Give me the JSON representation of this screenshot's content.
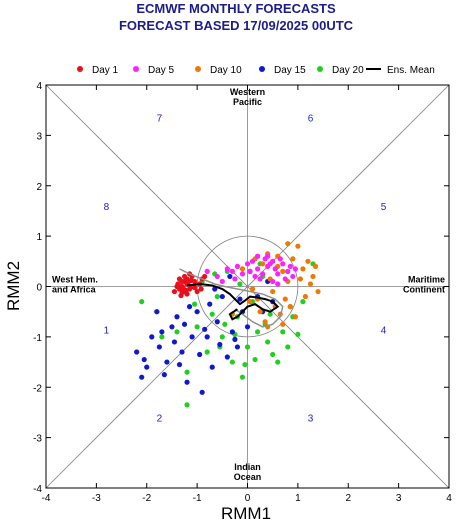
{
  "title_line1": "ECMWF MONTHLY FORECASTS",
  "title_line2": "FORECAST BASED 17/09/2025 00UTC",
  "colors": {
    "title": "#1c1c8c",
    "day1": "#e8101a",
    "day5": "#ff20ff",
    "day10": "#f07800",
    "day15": "#1018d0",
    "day20": "#20d020",
    "ens_mean": "#000000",
    "phase_numbers": "#2020d0"
  },
  "legend": [
    {
      "label": "Day 1",
      "color": "#e8101a",
      "kind": "dot"
    },
    {
      "label": "Day 5",
      "color": "#ff20ff",
      "kind": "dot"
    },
    {
      "label": "Day 10",
      "color": "#f07800",
      "kind": "dot"
    },
    {
      "label": "Day 15",
      "color": "#1018d0",
      "kind": "dot"
    },
    {
      "label": "Day 20",
      "color": "#20d020",
      "kind": "dot"
    },
    {
      "label": "Ens. Mean",
      "color": "#000000",
      "kind": "line"
    }
  ],
  "regions": {
    "top": [
      "Western",
      "Pacific"
    ],
    "bottom": [
      "Indian",
      "Ocean"
    ],
    "left": [
      "West Hem.",
      "and Africa"
    ],
    "right": [
      "Maritime",
      "Continent"
    ]
  },
  "chart_data": {
    "type": "scatter",
    "title": "ECMWF MONTHLY FORECASTS",
    "subtitle": "FORECAST BASED 17/09/2025 00UTC",
    "xlabel": "RMM1",
    "ylabel": "RMM2",
    "xlim": [
      -4,
      4
    ],
    "ylim": [
      -4,
      4
    ],
    "xticks": [
      -4,
      -3,
      -2,
      -1,
      0,
      1,
      2,
      3,
      4
    ],
    "yticks": [
      -4,
      -3,
      -2,
      -1,
      0,
      1,
      2,
      3,
      4
    ],
    "unit_circle_radius": 1,
    "phases": [
      {
        "label": "1",
        "x": -2.8,
        "y": -0.85
      },
      {
        "label": "2",
        "x": -1.75,
        "y": -2.6
      },
      {
        "label": "3",
        "x": 1.25,
        "y": -2.6
      },
      {
        "label": "4",
        "x": 2.7,
        "y": -0.85
      },
      {
        "label": "5",
        "x": 2.7,
        "y": 1.6
      },
      {
        "label": "6",
        "x": 1.25,
        "y": 3.35
      },
      {
        "label": "7",
        "x": -1.75,
        "y": 3.35
      },
      {
        "label": "8",
        "x": -2.8,
        "y": 1.6
      }
    ],
    "series": [
      {
        "name": "Day 1",
        "points": [
          [
            -1.25,
            0.1
          ],
          [
            -1.2,
            0.05
          ],
          [
            -1.3,
            0.0
          ],
          [
            -1.35,
            -0.05
          ],
          [
            -1.2,
            0.15
          ],
          [
            -1.1,
            0.0
          ],
          [
            -1.25,
            -0.1
          ],
          [
            -1.3,
            0.1
          ],
          [
            -1.15,
            -0.05
          ],
          [
            -1.4,
            0.0
          ],
          [
            -1.05,
            0.1
          ],
          [
            -1.2,
            -0.15
          ],
          [
            -1.3,
            -0.12
          ],
          [
            -0.95,
            0.05
          ],
          [
            -1.1,
            0.2
          ],
          [
            -0.9,
            0.15
          ],
          [
            -1.35,
            0.15
          ],
          [
            -1.28,
            -0.02
          ],
          [
            -1.18,
            0.08
          ],
          [
            -1.22,
            -0.08
          ],
          [
            -1.0,
            -0.1
          ],
          [
            -0.85,
            0.2
          ],
          [
            -1.45,
            -0.1
          ],
          [
            -1.12,
            0.12
          ],
          [
            -1.25,
            0.2
          ],
          [
            -0.92,
            -0.05
          ],
          [
            -1.38,
            0.05
          ],
          [
            -1.05,
            -0.02
          ],
          [
            -1.15,
            0.25
          ],
          [
            -1.32,
            -0.18
          ]
        ]
      },
      {
        "name": "Day 5",
        "points": [
          [
            -0.8,
            0.3
          ],
          [
            0.4,
            0.4
          ],
          [
            0.6,
            0.25
          ],
          [
            -0.3,
            0.3
          ],
          [
            0.2,
            0.35
          ],
          [
            0.7,
            0.45
          ],
          [
            -0.6,
            0.2
          ],
          [
            0.1,
            0.5
          ],
          [
            0.5,
            0.1
          ],
          [
            0.3,
            0.25
          ],
          [
            -0.2,
            0.4
          ],
          [
            0.8,
            0.3
          ],
          [
            0.45,
            0.45
          ],
          [
            -0.5,
            0.1
          ],
          [
            0.9,
            0.2
          ],
          [
            0.25,
            0.15
          ],
          [
            0.65,
            0.55
          ],
          [
            -0.1,
            0.25
          ],
          [
            0.55,
            0.35
          ],
          [
            0.35,
            0.55
          ],
          [
            0.0,
            0.45
          ],
          [
            0.75,
            0.15
          ],
          [
            -0.4,
            0.35
          ],
          [
            0.15,
            0.2
          ],
          [
            0.85,
            0.4
          ],
          [
            0.4,
            0.6
          ],
          [
            -0.25,
            0.15
          ],
          [
            0.6,
            0.05
          ],
          [
            0.2,
            0.6
          ],
          [
            0.95,
            0.35
          ],
          [
            0.05,
            0.3
          ],
          [
            0.5,
            0.5
          ]
        ]
      },
      {
        "name": "Day 10",
        "points": [
          [
            0.8,
            0.85
          ],
          [
            1.0,
            0.8
          ],
          [
            0.4,
            0.65
          ],
          [
            1.2,
            0.5
          ],
          [
            0.9,
            0.55
          ],
          [
            0.6,
            0.6
          ],
          [
            1.1,
            0.35
          ],
          [
            0.3,
            0.45
          ],
          [
            1.3,
            0.2
          ],
          [
            0.7,
            0.3
          ],
          [
            0.5,
            -0.1
          ],
          [
            1.15,
            -0.2
          ],
          [
            0.85,
            -0.4
          ],
          [
            0.2,
            -0.25
          ],
          [
            0.65,
            -0.55
          ],
          [
            1.4,
            -0.1
          ],
          [
            0.35,
            -0.7
          ],
          [
            0.95,
            -0.6
          ],
          [
            0.1,
            -0.05
          ],
          [
            -0.3,
            -0.55
          ],
          [
            0.45,
            0.15
          ],
          [
            1.25,
            0.05
          ],
          [
            0.75,
            -0.25
          ],
          [
            0.15,
            0.55
          ],
          [
            -0.1,
            0.35
          ],
          [
            0.55,
            -0.4
          ],
          [
            1.05,
            0.15
          ],
          [
            0.25,
            -0.5
          ],
          [
            0.6,
            0.4
          ],
          [
            0.8,
            0.1
          ],
          [
            1.35,
            0.4
          ],
          [
            0.05,
            -0.3
          ],
          [
            0.4,
            -0.8
          ],
          [
            0.7,
            -0.75
          ]
        ]
      },
      {
        "name": "Day 15",
        "points": [
          [
            -2.0,
            -1.6
          ],
          [
            -1.75,
            -1.2
          ],
          [
            -2.1,
            -1.8
          ],
          [
            -1.5,
            -0.8
          ],
          [
            -1.3,
            -1.3
          ],
          [
            -1.0,
            -0.5
          ],
          [
            -0.8,
            -1.0
          ],
          [
            -1.6,
            -1.5
          ],
          [
            -1.2,
            -1.9
          ],
          [
            -0.6,
            -0.7
          ],
          [
            -0.4,
            -1.4
          ],
          [
            -0.2,
            -1.2
          ],
          [
            0.0,
            -0.8
          ],
          [
            0.3,
            -0.5
          ],
          [
            0.5,
            -0.3
          ],
          [
            -0.9,
            -2.1
          ],
          [
            -2.2,
            -1.3
          ],
          [
            -1.9,
            -1.0
          ],
          [
            -1.4,
            -0.6
          ],
          [
            -0.7,
            -1.6
          ],
          [
            -0.3,
            -0.9
          ],
          [
            0.2,
            -0.2
          ],
          [
            -1.1,
            -1.0
          ],
          [
            -0.5,
            -0.2
          ],
          [
            -1.8,
            -0.5
          ],
          [
            -0.1,
            -0.5
          ],
          [
            0.4,
            0.1
          ],
          [
            -1.45,
            -1.1
          ],
          [
            -0.75,
            -0.35
          ],
          [
            -1.25,
            -0.75
          ],
          [
            -0.55,
            -1.15
          ],
          [
            -2.05,
            -1.45
          ],
          [
            -1.65,
            -1.75
          ],
          [
            -0.95,
            -1.35
          ],
          [
            -0.15,
            -0.25
          ],
          [
            -0.65,
            -0.05
          ],
          [
            -1.15,
            -0.4
          ],
          [
            -0.35,
            0.2
          ],
          [
            0.05,
            0.3
          ],
          [
            -0.85,
            -0.85
          ],
          [
            -1.35,
            -1.55
          ],
          [
            -0.25,
            -1.05
          ],
          [
            -1.7,
            -0.9
          ]
        ]
      },
      {
        "name": "Day 20",
        "points": [
          [
            -2.1,
            -0.3
          ],
          [
            -1.7,
            -1.0
          ],
          [
            -1.2,
            -1.7
          ],
          [
            -1.2,
            -2.35
          ],
          [
            -0.8,
            -1.3
          ],
          [
            -0.5,
            -1.0
          ],
          [
            -0.3,
            -1.5
          ],
          [
            0.0,
            -1.2
          ],
          [
            0.2,
            -0.9
          ],
          [
            0.4,
            -1.1
          ],
          [
            0.6,
            -1.5
          ],
          [
            0.8,
            -1.2
          ],
          [
            1.3,
            0.45
          ],
          [
            1.1,
            -0.3
          ],
          [
            0.9,
            -0.6
          ],
          [
            -1.0,
            -0.8
          ],
          [
            -1.4,
            -0.9
          ],
          [
            -0.6,
            -0.2
          ],
          [
            -0.2,
            -0.6
          ],
          [
            0.1,
            -0.3
          ],
          [
            -0.4,
            0.3
          ],
          [
            0.3,
            0.2
          ],
          [
            -1.8,
            -0.5
          ],
          [
            -0.1,
            -1.8
          ],
          [
            0.45,
            -0.55
          ],
          [
            -0.9,
            0.1
          ],
          [
            -0.7,
            -0.55
          ],
          [
            0.7,
            -0.9
          ],
          [
            1.0,
            -0.95
          ],
          [
            0.15,
            -1.45
          ],
          [
            -0.25,
            -0.95
          ],
          [
            -0.55,
            -1.2
          ],
          [
            0.35,
            -0.75
          ],
          [
            -1.05,
            -0.35
          ],
          [
            -0.15,
            0.05
          ],
          [
            0.5,
            -1.35
          ],
          [
            0.85,
            -0.4
          ],
          [
            -0.45,
            -0.75
          ],
          [
            0.25,
            0.45
          ],
          [
            -0.65,
            0.25
          ],
          [
            -0.05,
            -1.55
          ]
        ]
      },
      {
        "name": "Ens. Mean",
        "points": [
          [
            -1.2,
            0.02
          ],
          [
            -0.95,
            0.05
          ],
          [
            -0.7,
            0.02
          ],
          [
            -0.5,
            -0.05
          ],
          [
            -0.35,
            -0.15
          ],
          [
            -0.25,
            -0.25
          ],
          [
            -0.15,
            -0.35
          ],
          [
            -0.05,
            -0.28
          ],
          [
            0.05,
            -0.2
          ],
          [
            0.2,
            -0.22
          ],
          [
            0.35,
            -0.25
          ],
          [
            0.5,
            -0.3
          ],
          [
            0.6,
            -0.4
          ],
          [
            0.45,
            -0.5
          ],
          [
            0.3,
            -0.45
          ],
          [
            0.15,
            -0.35
          ],
          [
            0.0,
            -0.4
          ],
          [
            -0.1,
            -0.5
          ],
          [
            -0.2,
            -0.6
          ],
          [
            -0.3,
            -0.65
          ],
          [
            -0.35,
            -0.55
          ],
          [
            -0.2,
            -0.45
          ]
        ]
      },
      {
        "name": "Ens. Mean (grey)",
        "points": [
          [
            -1.35,
            0.35
          ],
          [
            -1.15,
            0.25
          ],
          [
            -0.9,
            0.15
          ],
          [
            -0.65,
            0.05
          ],
          [
            -0.45,
            0.0
          ],
          [
            -0.2,
            -0.05
          ],
          [
            0.05,
            -0.1
          ],
          [
            0.3,
            -0.15
          ],
          [
            0.55,
            -0.25
          ],
          [
            0.7,
            -0.4
          ],
          [
            0.65,
            -0.6
          ],
          [
            0.5,
            -0.75
          ],
          [
            0.3,
            -0.8
          ],
          [
            0.1,
            -0.7
          ],
          [
            -0.1,
            -0.55
          ],
          [
            -0.25,
            -0.45
          ]
        ]
      }
    ]
  }
}
